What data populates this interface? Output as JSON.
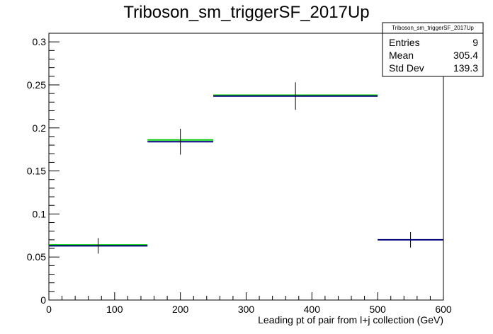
{
  "chart_data": {
    "type": "histogram",
    "title": "Triboson_sm_triggerSF_2017Up",
    "xlabel": "Leading pt of pair from l+j collection (GeV)",
    "ylabel": "",
    "xlim": [
      0,
      600
    ],
    "ylim": [
      0,
      0.31
    ],
    "x_ticks": [
      0,
      100,
      200,
      300,
      400,
      500,
      600
    ],
    "y_ticks": [
      0,
      0.05,
      0.1,
      0.15,
      0.2,
      0.25,
      0.3
    ],
    "y_tick_labels": [
      "0",
      "0.05",
      "0.1",
      "0.15",
      "0.2",
      "0.25",
      "0.3"
    ],
    "grid": false,
    "bins": [
      {
        "low": 0,
        "high": 150,
        "value": 0.063,
        "error": 0.009
      },
      {
        "low": 150,
        "high": 250,
        "value": 0.184,
        "error": 0.015
      },
      {
        "low": 250,
        "high": 500,
        "value": 0.237,
        "error": 0.016
      },
      {
        "low": 500,
        "high": 600,
        "value": 0.07,
        "error": 0.009
      }
    ],
    "overlay_bins": [
      {
        "low": 0,
        "high": 150,
        "value": 0.064
      },
      {
        "low": 150,
        "high": 250,
        "value": 0.186
      },
      {
        "low": 250,
        "high": 500,
        "value": 0.238
      }
    ],
    "colors": {
      "main": "#00007f",
      "overlay": "#00cc00",
      "errors": "#000000"
    },
    "stats": {
      "name": "Triboson_sm_triggerSF_2017Up",
      "rows": [
        {
          "label": "Entries",
          "value": "9"
        },
        {
          "label": "Mean",
          "value": "305.4"
        },
        {
          "label": "Std Dev",
          "value": "139.3"
        }
      ]
    }
  }
}
